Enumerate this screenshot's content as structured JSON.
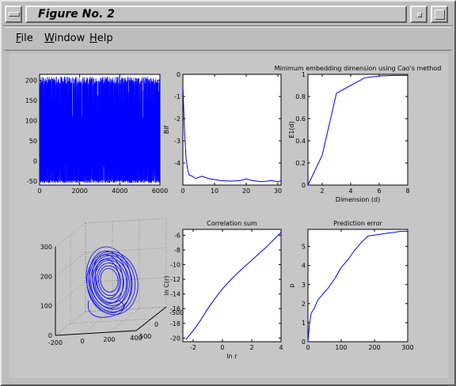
{
  "window": {
    "title": "Figure No. 2"
  },
  "menu": [
    {
      "label": "File",
      "mnemonic": "F",
      "rest": "ile"
    },
    {
      "label": "Window",
      "mnemonic": "W",
      "rest": "indow"
    },
    {
      "label": "Help",
      "mnemonic": "H",
      "rest": "elp"
    }
  ],
  "colors": {
    "line": "#0000ff",
    "background": "#c6c6c6",
    "axes_bg": "#ffffff"
  },
  "chart_data": [
    {
      "id": "timeseries",
      "type": "line",
      "title": "",
      "xlabel": "",
      "ylabel": "",
      "xlim": [
        0,
        6000
      ],
      "ylim": [
        -60,
        215
      ],
      "xticks": [
        "0",
        "2000",
        "4000",
        "6000"
      ],
      "yticks": [
        "-50",
        "0",
        "50",
        "100",
        "150",
        "200"
      ],
      "description_values": {
        "series": "dense oscillation between about -55 and 210"
      }
    },
    {
      "id": "bif",
      "type": "line",
      "title": "",
      "xlabel": "",
      "ylabel": "Bif",
      "xlim": [
        0,
        31
      ],
      "ylim": [
        -5,
        0
      ],
      "xticks": [
        "0",
        "10",
        "20",
        "30"
      ],
      "yticks": [
        "-4",
        "-3",
        "-2",
        "-1",
        "0"
      ],
      "x": [
        0,
        0.5,
        1,
        1.5,
        2,
        3,
        4,
        5,
        6,
        8,
        10,
        12,
        15,
        18,
        20,
        22,
        25,
        28,
        30,
        31
      ],
      "y": [
        -0.5,
        -2.5,
        -3.8,
        -4.3,
        -4.55,
        -4.6,
        -4.7,
        -4.65,
        -4.6,
        -4.7,
        -4.75,
        -4.8,
        -4.82,
        -4.8,
        -4.72,
        -4.8,
        -4.85,
        -4.8,
        -4.85,
        -4.8
      ]
    },
    {
      "id": "cao",
      "type": "line",
      "title": "Minimum embedding dimension using Cao's method",
      "xlabel": "Dimension (d)",
      "ylabel": "E1(d)",
      "xlim": [
        1,
        8
      ],
      "ylim": [
        0,
        1
      ],
      "xticks": [
        "2",
        "4",
        "6",
        "8"
      ],
      "yticks": [
        "0",
        "0.2",
        "0.4",
        "0.6",
        "0.8",
        "1"
      ],
      "x": [
        1,
        2,
        3,
        4,
        5,
        6,
        7,
        8
      ],
      "y": [
        0.0,
        0.27,
        0.83,
        0.9,
        0.97,
        0.985,
        0.99,
        0.99
      ]
    },
    {
      "id": "attractor",
      "type": "scatter",
      "title": "",
      "xlabel": "",
      "ylabel": "",
      "xticks": [
        "-200",
        "0",
        "200",
        "400"
      ],
      "yticks": [
        "-500",
        "0",
        "500"
      ],
      "zticks": [
        "0",
        "100",
        "200",
        "300"
      ]
    },
    {
      "id": "corrsum",
      "type": "line",
      "title": "Correlation sum",
      "xlabel": "ln r",
      "ylabel": "ln C(r)",
      "xlim": [
        -2.7,
        4
      ],
      "ylim": [
        -20.5,
        -5.2
      ],
      "xticks": [
        "-2",
        "0",
        "2",
        "4"
      ],
      "yticks": [
        "-20",
        "-18",
        "-16",
        "-14",
        "-12",
        "-10",
        "-8",
        "-6"
      ],
      "x": [
        -2.5,
        -2.0,
        -1.5,
        -1.0,
        -0.5,
        0.0,
        0.5,
        1.0,
        1.5,
        2.0,
        2.5,
        3.0,
        3.5,
        4.0
      ],
      "y": [
        -20.2,
        -19.0,
        -17.6,
        -16.0,
        -14.6,
        -13.3,
        -12.2,
        -11.2,
        -10.3,
        -9.4,
        -8.5,
        -7.6,
        -6.6,
        -5.6
      ]
    },
    {
      "id": "prederr",
      "type": "line",
      "title": "Prediction error",
      "xlabel": "",
      "ylabel": "p",
      "xlim": [
        0,
        300
      ],
      "ylim": [
        0,
        5.9
      ],
      "xticks": [
        "0",
        "100",
        "200",
        "300"
      ],
      "yticks": [
        "0",
        "1",
        "2",
        "3",
        "4",
        "5"
      ],
      "x": [
        0,
        5,
        10,
        20,
        30,
        40,
        60,
        80,
        100,
        120,
        140,
        160,
        180,
        200,
        220,
        240,
        260,
        280,
        300
      ],
      "y": [
        0,
        1.0,
        1.5,
        1.8,
        2.2,
        2.4,
        2.8,
        3.3,
        3.9,
        4.3,
        4.8,
        5.2,
        5.55,
        5.6,
        5.65,
        5.7,
        5.75,
        5.8,
        5.8
      ]
    }
  ]
}
